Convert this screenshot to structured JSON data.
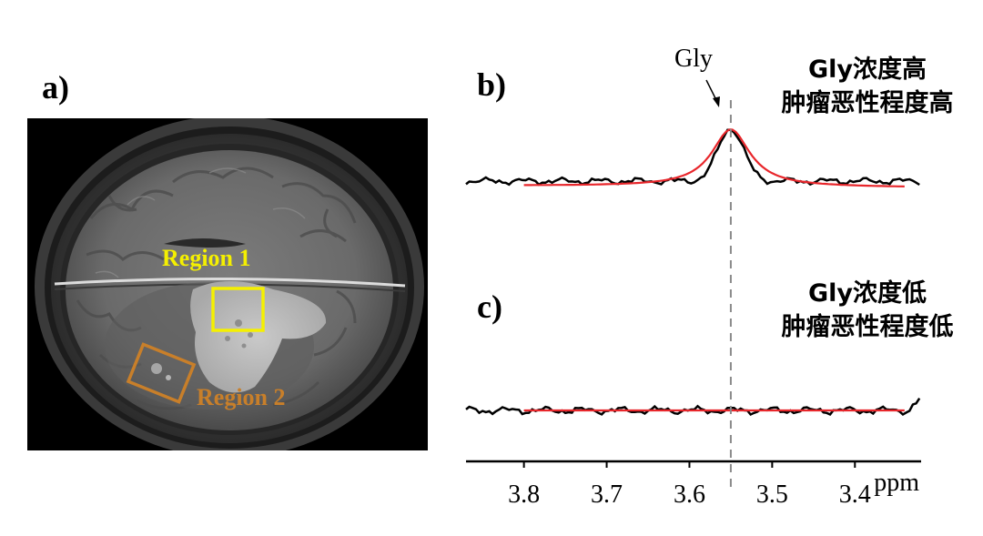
{
  "panel_a": {
    "label": "a)",
    "regions": [
      {
        "name": "Region 1",
        "color": "#f5f000"
      },
      {
        "name": "Region 2",
        "color": "#c87f2a"
      }
    ]
  },
  "panel_b": {
    "label": "b)",
    "note_line1": "Gly浓度高",
    "note_line2": "肿瘤恶性程度高"
  },
  "panel_c": {
    "label": "c)",
    "note_line1": "Gly浓度低",
    "note_line2": "肿瘤恶性程度低"
  },
  "chart_data": [
    {
      "type": "line",
      "panel": "b",
      "peak_label": "Gly",
      "peak_position": 3.55,
      "xlim": [
        3.87,
        3.32
      ],
      "x_reversed": true,
      "series": [
        {
          "color": "#000000",
          "peak_center": 3.55,
          "peak_height": 1.0,
          "peak_width": 0.022
        },
        {
          "color": "#e8262b",
          "peak_center": 3.55,
          "peak_height": 1.0,
          "peak_width": 0.028
        }
      ]
    },
    {
      "type": "line",
      "panel": "c",
      "xlabel": "ppm",
      "xticks": [
        3.8,
        3.7,
        3.6,
        3.5,
        3.4
      ],
      "xlim": [
        3.87,
        3.32
      ],
      "x_reversed": true,
      "series": [
        {
          "color": "#000000",
          "peak_height": 0
        },
        {
          "color": "#e8262b",
          "peak_height": 0
        }
      ]
    }
  ]
}
